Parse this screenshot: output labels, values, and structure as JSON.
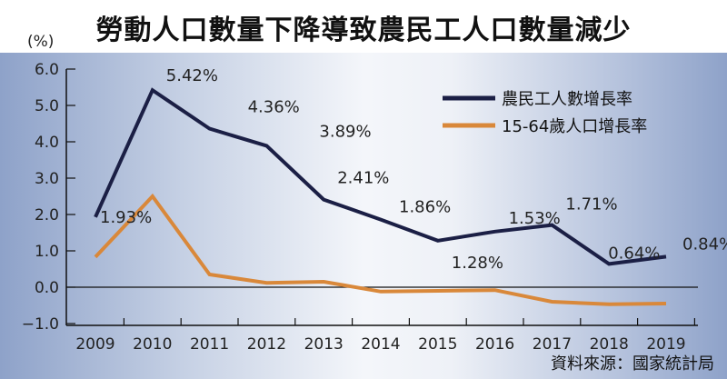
{
  "chart_data": {
    "type": "line",
    "title": "勞動人口數量下降導致農民工人口數量減少",
    "ylabel": "(%)",
    "xlabel": "",
    "categories": [
      "2009",
      "2010",
      "2011",
      "2012",
      "2013",
      "2014",
      "2015",
      "2016",
      "2017",
      "2018",
      "2019"
    ],
    "ylim": [
      -1.0,
      6.0
    ],
    "yticks": [
      "6.0",
      "5.0",
      "4.0",
      "3.0",
      "2.0",
      "1.0",
      "0.0",
      "-1.0"
    ],
    "legend_position": "top-right",
    "series": [
      {
        "name": "農民工人數增長率",
        "color": "#1b1f45",
        "values": [
          1.93,
          5.42,
          4.36,
          3.89,
          2.41,
          1.86,
          1.28,
          1.53,
          1.71,
          0.64,
          0.84
        ],
        "labels": [
          "1.93%",
          "5.42%",
          "4.36%",
          "3.89%",
          "2.41%",
          "1.86%",
          "1.28%",
          "1.53%",
          "1.71%",
          "0.64%",
          "0.84%"
        ]
      },
      {
        "name": "15-64歲人口增長率",
        "color": "#d9883a",
        "values": [
          0.83,
          2.5,
          0.35,
          0.12,
          0.15,
          -0.12,
          -0.1,
          -0.08,
          -0.4,
          -0.47,
          -0.45
        ]
      }
    ],
    "source": "資料來源：國家統計局"
  }
}
